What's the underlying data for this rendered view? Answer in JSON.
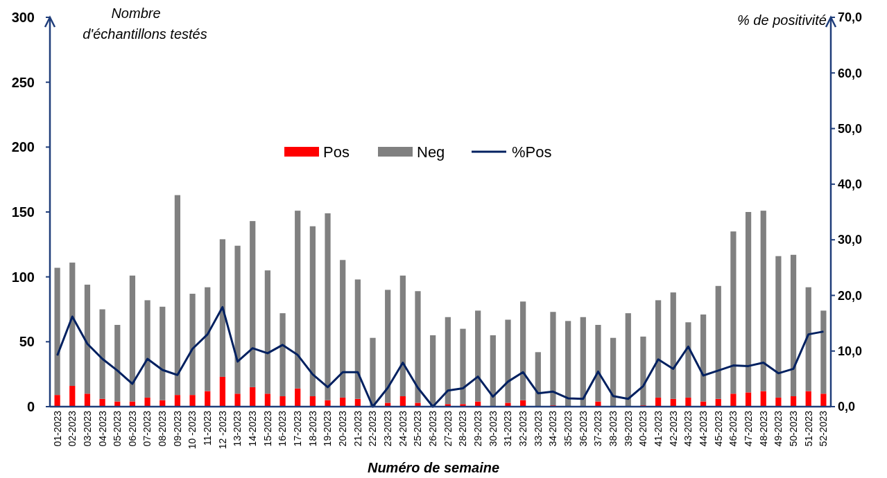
{
  "chart_data": {
    "type": "bar",
    "stacked": true,
    "xlabel": "Numéro de semaine",
    "ylabel": "Nombre d'échantillons testés",
    "y2label": "% de positivité",
    "legend": "top",
    "categories": [
      "01-2023",
      "02-2023",
      "03-2023",
      "04-2023",
      "05-2023",
      "06-2023",
      "07-2023",
      "08-2023",
      "09-2023",
      "10 -2023",
      "11-2023",
      "12 -2023",
      "13-2023",
      "14-2023",
      "15-2023",
      "16-2023",
      "17-2023",
      "18-2023",
      "19-2023",
      "20-2023",
      "21-2023",
      "22-2023",
      "23-2023",
      "24-2023",
      "25-2023",
      "26-2023",
      "27-2023",
      "28-2023",
      "29-2023",
      "30-2023",
      "31-2023",
      "32-2023",
      "33-2023",
      "34-2023",
      "35-2023",
      "36-2023",
      "37-2023",
      "38-2023",
      "39-2023",
      "40-2023",
      "41-2023",
      "42-2023",
      "43-2023",
      "44-2023",
      "45-2023",
      "46-2023",
      "47-2023",
      "48-2023",
      "49-2023",
      "50-2023",
      "51-2023",
      "52-2023"
    ],
    "ylim": [
      0,
      300
    ],
    "yticks": [
      0,
      50,
      100,
      150,
      200,
      250,
      300
    ],
    "y2lim": [
      0,
      70
    ],
    "y2ticks": [
      {
        "value": 0,
        "label": "0,0"
      },
      {
        "value": 10,
        "label": "10,0"
      },
      {
        "value": 20,
        "label": "20,0"
      },
      {
        "value": 30,
        "label": "30,0"
      },
      {
        "value": 40,
        "label": "40,0"
      },
      {
        "value": 50,
        "label": "50,0"
      },
      {
        "value": 60,
        "label": "60,0"
      },
      {
        "value": 70,
        "label": "70,0"
      }
    ],
    "series": [
      {
        "name": "Pos",
        "color": "#ff0000",
        "values": [
          9,
          16,
          10,
          6,
          4,
          4,
          7,
          5,
          9,
          9,
          12,
          23,
          10,
          15,
          10,
          8,
          14,
          8,
          5,
          7,
          6,
          0,
          3,
          8,
          3,
          0,
          2,
          2,
          4,
          0,
          3,
          5,
          0,
          1,
          0,
          0,
          4,
          0,
          0,
          1,
          7,
          6,
          7,
          4,
          6,
          10,
          11,
          12,
          7,
          8,
          12,
          10
        ]
      },
      {
        "name": "Neg",
        "color": "#808080",
        "values": [
          98,
          95,
          84,
          69,
          59,
          97,
          75,
          72,
          154,
          78,
          80,
          106,
          114,
          128,
          95,
          64,
          137,
          131,
          144,
          106,
          92,
          53,
          87,
          93,
          86,
          55,
          67,
          58,
          70,
          55,
          64,
          76,
          42,
          72,
          66,
          69,
          59,
          53,
          72,
          53,
          75,
          82,
          58,
          67,
          87,
          125,
          139,
          139,
          109,
          109,
          80,
          64
        ]
      },
      {
        "name": "%Pos",
        "type": "line",
        "axis": "y2",
        "color": "#002060",
        "values": [
          9.2,
          16.2,
          11.3,
          8.6,
          6.5,
          4.1,
          8.6,
          6.6,
          5.7,
          10.4,
          13.0,
          17.9,
          8.1,
          10.5,
          9.6,
          11.1,
          9.3,
          5.8,
          3.5,
          6.2,
          6.2,
          0,
          3.4,
          7.9,
          3.4,
          0,
          2.9,
          3.3,
          5.4,
          1.8,
          4.5,
          6.2,
          2.4,
          2.7,
          1.5,
          1.4,
          6.3,
          1.9,
          1.4,
          3.7,
          8.5,
          6.8,
          10.8,
          5.6,
          6.5,
          7.4,
          7.3,
          7.9,
          6.0,
          6.8,
          13.0,
          13.5
        ]
      }
    ]
  }
}
